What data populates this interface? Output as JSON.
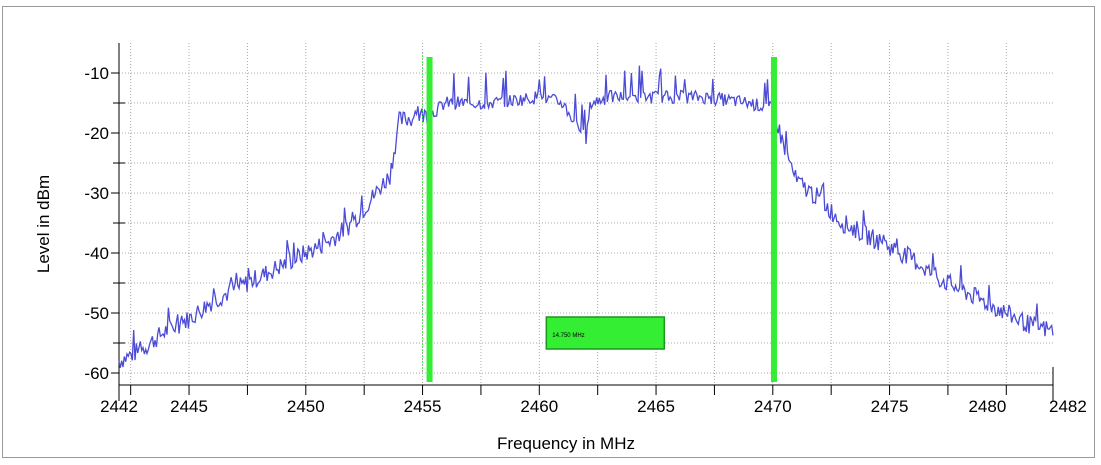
{
  "chart_data": {
    "type": "line",
    "xlabel": "Frequency in MHz",
    "ylabel": "Level in dBm",
    "xlim": [
      2442,
      2482
    ],
    "ylim": [
      -62,
      -5
    ],
    "x_ticks": [
      2442,
      2445,
      2450,
      2455,
      2460,
      2465,
      2470,
      2475,
      2480,
      2482
    ],
    "y_ticks": [
      -10,
      -20,
      -30,
      -40,
      -50,
      -60
    ],
    "grid": true,
    "colors": {
      "trace": "#4b4bd6",
      "marker": "#33ee33",
      "marker_border": "#1a9a1a",
      "grid": "#a8a8a8"
    },
    "markers": [
      {
        "x": 2455.3,
        "label": "marker-left"
      },
      {
        "x": 2470.05,
        "label": "marker-right"
      }
    ],
    "bandwidth_label": "14.750 MHz",
    "series": [
      {
        "x": [
          2442,
          2443,
          2444,
          2445,
          2446,
          2447,
          2448,
          2449,
          2450,
          2451,
          2452,
          2453,
          2453.6,
          2454,
          2455,
          2455.3,
          2456,
          2458,
          2460,
          2461,
          2461.8,
          2462,
          2462.2,
          2463,
          2465,
          2467,
          2469,
          2470,
          2470.3,
          2471,
          2472,
          2473,
          2474,
          2475,
          2476,
          2477,
          2478,
          2479,
          2480,
          2481,
          2482
        ],
        "y": [
          -58,
          -56,
          -53,
          -51,
          -48,
          -46,
          -44,
          -42,
          -40,
          -38,
          -35,
          -30,
          -27,
          -18,
          -17,
          -17,
          -15,
          -15,
          -14,
          -15,
          -20,
          -21,
          -15,
          -14,
          -14,
          -14,
          -15,
          -16,
          -20,
          -28,
          -31,
          -35,
          -37,
          -39,
          -41,
          -44,
          -46,
          -48,
          -50,
          -52,
          -53
        ]
      }
    ]
  }
}
